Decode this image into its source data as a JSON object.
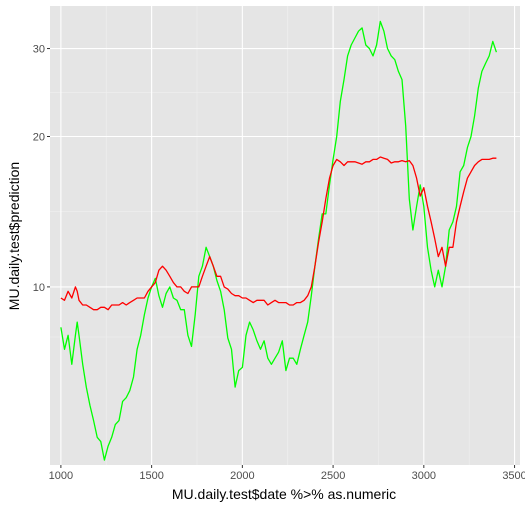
{
  "chart_data": {
    "type": "line",
    "title": "",
    "xlabel": "MU.daily.test$date %>% as.numeric",
    "ylabel": "MU.daily.test$prediction",
    "x_ticks": [
      1000,
      1500,
      2000,
      2500,
      3000,
      3500
    ],
    "x_tick_labels": [
      "1000",
      "1500",
      "2000",
      "2500",
      "3000",
      "3500"
    ],
    "y_ticks": [
      10,
      20,
      30
    ],
    "y_tick_labels": [
      "10",
      "20",
      "30"
    ],
    "y_scale": "log",
    "xlim": [
      940,
      3530
    ],
    "ylim": [
      4.4,
      36.5
    ],
    "grid": true,
    "legend": "none",
    "colors": {
      "panel": "#e5e5e5",
      "grid_major": "#ffffff",
      "grid_minor": "#f0f0f0",
      "tick": "#333333",
      "tick_label": "#4d4d4d"
    },
    "series": [
      {
        "color": "#00ff00",
        "x": [
          1000,
          1020,
          1040,
          1060,
          1080,
          1090,
          1100,
          1120,
          1140,
          1160,
          1180,
          1200,
          1220,
          1240,
          1260,
          1280,
          1300,
          1320,
          1340,
          1360,
          1380,
          1400,
          1420,
          1440,
          1460,
          1480,
          1500,
          1520,
          1540,
          1560,
          1580,
          1600,
          1620,
          1640,
          1660,
          1680,
          1700,
          1720,
          1740,
          1760,
          1780,
          1800,
          1820,
          1840,
          1860,
          1880,
          1900,
          1920,
          1940,
          1960,
          1980,
          2000,
          2020,
          2040,
          2060,
          2080,
          2100,
          2120,
          2140,
          2160,
          2180,
          2200,
          2220,
          2240,
          2260,
          2280,
          2300,
          2320,
          2340,
          2360,
          2380,
          2400,
          2420,
          2440,
          2460,
          2480,
          2500,
          2520,
          2540,
          2560,
          2580,
          2600,
          2620,
          2640,
          2660,
          2680,
          2700,
          2720,
          2740,
          2760,
          2780,
          2800,
          2820,
          2840,
          2860,
          2880,
          2900,
          2920,
          2940,
          2960,
          2980,
          3000,
          3020,
          3040,
          3060,
          3080,
          3100,
          3120,
          3140,
          3160,
          3180,
          3200,
          3220,
          3240,
          3260,
          3280,
          3300,
          3320,
          3340,
          3360,
          3380,
          3400
        ],
        "y": [
          8.3,
          7.5,
          8.0,
          7.0,
          8.0,
          8.5,
          8.0,
          7.0,
          6.3,
          5.8,
          5.4,
          5.0,
          4.9,
          4.5,
          4.8,
          5.0,
          5.3,
          5.4,
          5.9,
          6.0,
          6.2,
          6.6,
          7.5,
          8.0,
          8.8,
          9.5,
          10.0,
          10.4,
          9.6,
          9.1,
          9.7,
          10.0,
          9.5,
          9.4,
          9.0,
          9.0,
          8.0,
          7.6,
          8.8,
          10.5,
          11.0,
          12.0,
          11.5,
          11.0,
          10.3,
          9.8,
          9.0,
          7.9,
          7.5,
          6.3,
          6.8,
          6.9,
          8.0,
          8.5,
          8.2,
          7.8,
          7.5,
          7.8,
          7.2,
          7.0,
          7.2,
          7.4,
          7.8,
          6.8,
          7.2,
          7.2,
          7.0,
          7.5,
          8.0,
          8.5,
          9.6,
          11.0,
          12.5,
          14.0,
          14.0,
          16.0,
          18.0,
          20.0,
          23.5,
          26.0,
          29.0,
          30.5,
          31.5,
          32.5,
          33.0,
          30.5,
          30.0,
          29.0,
          30.5,
          34.0,
          32.5,
          30.0,
          29.0,
          28.5,
          27.0,
          26.0,
          21.0,
          15.0,
          13.0,
          14.5,
          16.0,
          14.5,
          12.0,
          10.8,
          10.0,
          10.8,
          10.0,
          11.0,
          13.0,
          13.5,
          14.5,
          17.0,
          17.5,
          19.0,
          20.0,
          22.0,
          25.0,
          27.0,
          28.0,
          29.0,
          31.0,
          29.5
        ]
      },
      {
        "color": "#ff0000",
        "x": [
          1000,
          1020,
          1040,
          1060,
          1080,
          1090,
          1100,
          1120,
          1140,
          1160,
          1180,
          1200,
          1220,
          1240,
          1260,
          1280,
          1300,
          1320,
          1340,
          1360,
          1380,
          1400,
          1420,
          1440,
          1460,
          1480,
          1500,
          1520,
          1540,
          1560,
          1580,
          1600,
          1620,
          1640,
          1660,
          1680,
          1700,
          1720,
          1740,
          1760,
          1780,
          1800,
          1820,
          1840,
          1860,
          1880,
          1900,
          1920,
          1940,
          1960,
          1980,
          2000,
          2020,
          2040,
          2060,
          2080,
          2100,
          2120,
          2140,
          2160,
          2180,
          2200,
          2220,
          2240,
          2260,
          2280,
          2300,
          2320,
          2340,
          2360,
          2380,
          2400,
          2420,
          2440,
          2460,
          2480,
          2500,
          2520,
          2540,
          2560,
          2580,
          2600,
          2620,
          2640,
          2660,
          2680,
          2700,
          2720,
          2740,
          2760,
          2780,
          2800,
          2820,
          2840,
          2860,
          2880,
          2900,
          2920,
          2940,
          2960,
          2980,
          3000,
          3020,
          3040,
          3060,
          3080,
          3100,
          3120,
          3140,
          3160,
          3180,
          3200,
          3220,
          3240,
          3260,
          3280,
          3300,
          3320,
          3340,
          3360,
          3380,
          3400
        ],
        "y": [
          9.5,
          9.4,
          9.8,
          9.5,
          10.0,
          9.8,
          9.4,
          9.2,
          9.2,
          9.1,
          9.0,
          9.0,
          9.1,
          9.1,
          9.0,
          9.2,
          9.2,
          9.2,
          9.3,
          9.2,
          9.3,
          9.4,
          9.5,
          9.5,
          9.5,
          9.8,
          10.0,
          10.2,
          10.8,
          11.0,
          10.8,
          10.5,
          10.2,
          10.0,
          10.0,
          9.8,
          9.7,
          10.0,
          10.0,
          10.0,
          10.5,
          11.0,
          11.5,
          11.0,
          10.5,
          10.5,
          10.0,
          9.9,
          9.7,
          9.6,
          9.6,
          9.5,
          9.5,
          9.4,
          9.3,
          9.4,
          9.4,
          9.4,
          9.2,
          9.3,
          9.4,
          9.3,
          9.3,
          9.3,
          9.2,
          9.2,
          9.3,
          9.3,
          9.4,
          9.6,
          10.0,
          11.0,
          12.3,
          13.5,
          15.0,
          16.5,
          17.5,
          18.0,
          17.8,
          17.5,
          17.8,
          17.8,
          17.8,
          17.7,
          17.6,
          17.8,
          17.8,
          18.0,
          18.0,
          18.2,
          18.1,
          18.0,
          17.7,
          17.8,
          17.8,
          17.9,
          17.8,
          17.9,
          17.5,
          16.5,
          15.2,
          15.8,
          14.5,
          13.5,
          12.5,
          11.5,
          12.0,
          11.0,
          12.0,
          12.0,
          13.5,
          14.5,
          15.5,
          16.5,
          17.0,
          17.5,
          17.8,
          18.0,
          18.0,
          18.0,
          18.1,
          18.1
        ]
      }
    ]
  }
}
